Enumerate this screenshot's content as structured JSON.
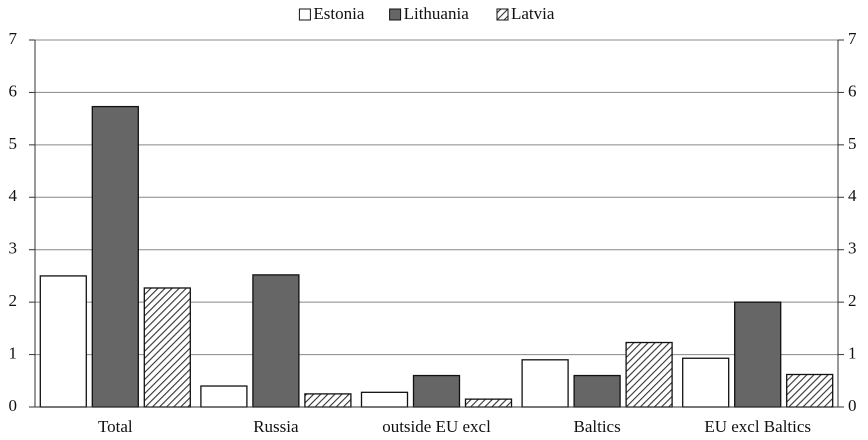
{
  "chart_data": {
    "type": "bar",
    "categories": [
      "Total",
      "Russia",
      "outside EU excl Russia",
      "Baltics",
      "EU excl Baltics"
    ],
    "series": [
      {
        "name": "Estonia",
        "color": "#ffffff",
        "values": [
          2.5,
          0.4,
          0.28,
          0.9,
          0.93
        ]
      },
      {
        "name": "Lithuania",
        "color": "#666666",
        "values": [
          5.73,
          2.52,
          0.6,
          0.6,
          2.0
        ]
      },
      {
        "name": "Latvia",
        "color": "#555555",
        "pattern": "diagonal-hatch",
        "values": [
          2.27,
          0.25,
          0.15,
          1.23,
          0.62
        ]
      }
    ],
    "ylim": [
      0,
      7
    ],
    "yticks": [
      0,
      1,
      2,
      3,
      4,
      5,
      6,
      7
    ],
    "y2lim": [
      0,
      7
    ],
    "y2ticks": [
      0,
      1,
      2,
      3,
      4,
      5,
      6,
      7
    ],
    "grid": true,
    "legend": "top"
  }
}
